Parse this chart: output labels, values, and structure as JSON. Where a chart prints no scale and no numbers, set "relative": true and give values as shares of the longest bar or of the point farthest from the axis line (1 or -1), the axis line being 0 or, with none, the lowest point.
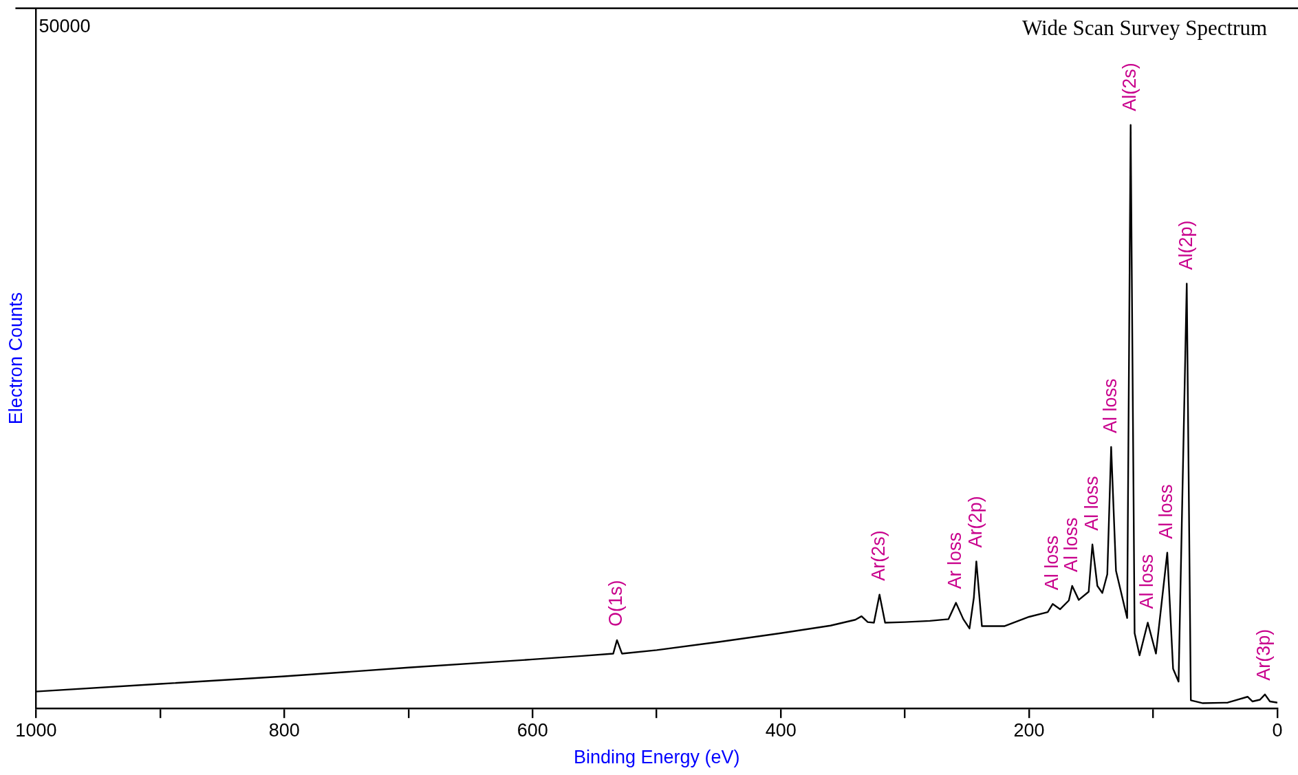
{
  "chart_data": {
    "type": "line",
    "title": "Wide Scan Survey Spectrum",
    "xlabel": "Binding Energy (eV)",
    "ylabel": "Electron Counts",
    "relative": true,
    "xlim": [
      1000,
      0
    ],
    "xticks": [
      1000,
      {
        "value": 900,
        "label": null
      },
      800,
      {
        "value": 700,
        "label": null
      },
      600,
      {
        "value": 500,
        "label": null
      },
      400,
      {
        "value": 300,
        "label": null
      },
      200,
      {
        "value": 100,
        "label": null
      },
      0
    ],
    "series": [
      {
        "color": "#000000",
        "x": [
          1000,
          900,
          800,
          700,
          600,
          560,
          535,
          532,
          528,
          500,
          450,
          400,
          360,
          340,
          335,
          330,
          325,
          320.5,
          316,
          300,
          280,
          265,
          258.9,
          253,
          248,
          244.5,
          242.5,
          238,
          220,
          200,
          185,
          181,
          175,
          168,
          165.3,
          160,
          152,
          149,
          145,
          141,
          137,
          133.9,
          130,
          126,
          121,
          118.2,
          115,
          111,
          104.4,
          97.8,
          88.7,
          84,
          79.6,
          73,
          69.7,
          60,
          40,
          24,
          20,
          14,
          10,
          6,
          0
        ],
        "values": [
          0.029,
          0.042,
          0.055,
          0.07,
          0.084,
          0.09,
          0.094,
          0.117,
          0.094,
          0.1,
          0.114,
          0.129,
          0.142,
          0.152,
          0.158,
          0.148,
          0.147,
          0.195,
          0.147,
          0.148,
          0.15,
          0.153,
          0.181,
          0.153,
          0.137,
          0.19,
          0.252,
          0.141,
          0.141,
          0.157,
          0.165,
          0.179,
          0.17,
          0.185,
          0.21,
          0.186,
          0.2,
          0.281,
          0.21,
          0.198,
          0.23,
          0.448,
          0.236,
          0.2,
          0.155,
          1.0,
          0.129,
          0.091,
          0.147,
          0.094,
          0.267,
          0.068,
          0.046,
          0.728,
          0.014,
          0.009,
          0.01,
          0.02,
          0.012,
          0.015,
          0.024,
          0.012,
          0.01
        ]
      }
    ],
    "annotations": [
      "50000",
      {
        "text": "O(1s)",
        "x": 532,
        "y": 0.117
      },
      {
        "text": "Ar(2s)",
        "x": 320.5,
        "y": 0.195
      },
      {
        "text": "Ar loss",
        "x": 258.9,
        "y": 0.181
      },
      {
        "text": "Ar(2p)",
        "x": 242.5,
        "y": 0.252
      },
      {
        "text": "Al loss",
        "x": 181,
        "y": 0.179
      },
      {
        "text": "Al loss",
        "x": 165.3,
        "y": 0.21
      },
      {
        "text": "Al loss",
        "x": 149,
        "y": 0.281
      },
      {
        "text": "Al loss",
        "x": 133.9,
        "y": 0.448
      },
      {
        "text": "Al(2s)",
        "x": 118.2,
        "y": 1.0
      },
      {
        "text": "Al loss",
        "x": 104.4,
        "y": 0.147
      },
      {
        "text": "Al loss",
        "x": 88.7,
        "y": 0.267
      },
      {
        "text": "Al(2p)",
        "x": 73,
        "y": 0.728
      },
      {
        "text": "Ar(3p)",
        "x": 10,
        "y": 0.024
      }
    ]
  }
}
